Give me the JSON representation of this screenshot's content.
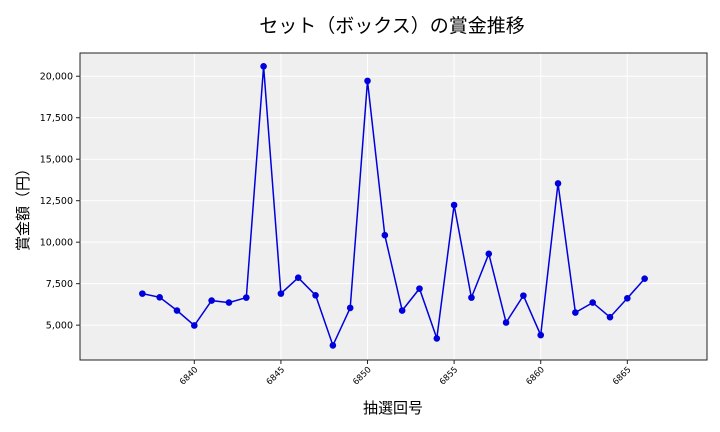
{
  "chart_data": {
    "type": "line",
    "title": "セット（ボックス）の賞金推移",
    "xlabel": "抽選回号",
    "ylabel": "賞金額（円）",
    "x": [
      6837,
      6838,
      6839,
      6840,
      6841,
      6842,
      6843,
      6844,
      6845,
      6846,
      6847,
      6848,
      6849,
      6850,
      6851,
      6852,
      6853,
      6854,
      6855,
      6856,
      6857,
      6858,
      6859,
      6860,
      6861,
      6862,
      6863,
      6864,
      6865,
      6866
    ],
    "series": [
      {
        "name": "賞金額",
        "color": "#0000dd",
        "marker": "circle",
        "values": [
          6900,
          6680,
          5880,
          4980,
          6480,
          6360,
          6660,
          20600,
          6900,
          7860,
          6800,
          3780,
          6040,
          19720,
          10420,
          5880,
          7200,
          4200,
          12240,
          6660,
          9300,
          5160,
          6780,
          4400,
          13540,
          5760,
          6360,
          5480,
          6620,
          7800
        ]
      }
    ],
    "xticks": [
      6840,
      6845,
      6850,
      6855,
      6860,
      6865
    ],
    "xtick_labels": [
      "6840",
      "6845",
      "6850",
      "6855",
      "6860",
      "6865"
    ],
    "yticks": [
      5000,
      7500,
      10000,
      12500,
      15000,
      17500,
      20000
    ],
    "ytick_labels": [
      "5,000",
      "7,500",
      "10,000",
      "12,500",
      "15,000",
      "17,500",
      "20,000"
    ],
    "xlim": [
      6833.4,
      6869.6
    ],
    "ylim": [
      2900,
      21400
    ],
    "grid": true,
    "legend": false,
    "background": "#efefef",
    "gridline_color": "#ffffff"
  }
}
